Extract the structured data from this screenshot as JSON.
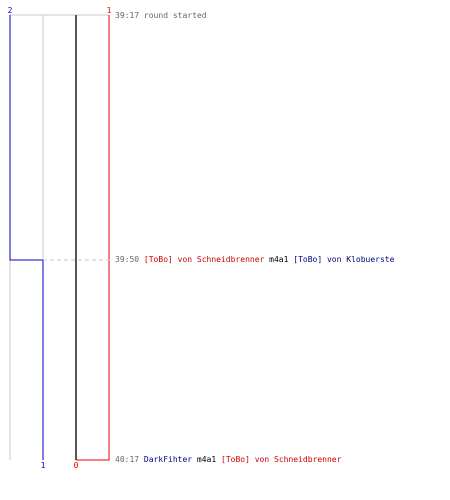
{
  "colors": {
    "red_team": "#ee0000",
    "blue_team": "#0000cc",
    "neutral": "#c8c8c8",
    "dark": "#555555",
    "dashed": "#c8c8c8"
  },
  "top_counters": {
    "blue": "2",
    "red": "1"
  },
  "bottom_counters": {
    "blue": "1",
    "red": "0"
  },
  "events": [
    {
      "time": "39:17",
      "text": "round started"
    },
    {
      "time": "39:50",
      "attacker": "[ToBo] von Schneidbrenner",
      "weapon": "m4a1",
      "victim": "[ToBo] von Klobuerste"
    },
    {
      "time": "40:17",
      "attacker": "DarkFihter",
      "weapon": "m4a1",
      "victim": "[ToBo] von Schneidbrenner"
    }
  ]
}
